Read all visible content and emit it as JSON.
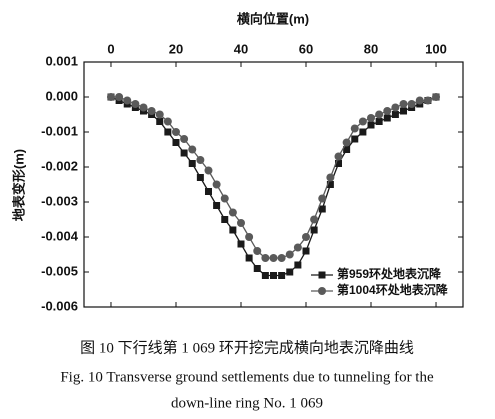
{
  "chart_data": {
    "type": "line",
    "x_label": "横向位置(m)",
    "y_label": "地表变形(m)",
    "x": [
      0,
      2.5,
      5,
      7.5,
      10,
      12.5,
      15,
      17.5,
      20,
      22.5,
      25,
      27.5,
      30,
      32.5,
      35,
      37.5,
      40,
      42.5,
      45,
      47.5,
      50,
      52.5,
      55,
      57.5,
      60,
      62.5,
      65,
      67.5,
      70,
      72.5,
      75,
      77.5,
      80,
      82.5,
      85,
      87.5,
      90,
      92.5,
      95,
      97.5,
      100
    ],
    "series": [
      {
        "name": "第959环处地表沉降",
        "color": "#1a1a1a",
        "marker": "square",
        "values": [
          0,
          -0.0001,
          -0.0002,
          -0.0003,
          -0.0004,
          -0.0005,
          -0.0007,
          -0.001,
          -0.0013,
          -0.0016,
          -0.0019,
          -0.0023,
          -0.0027,
          -0.0031,
          -0.0035,
          -0.0038,
          -0.0042,
          -0.0046,
          -0.0049,
          -0.0051,
          -0.0051,
          -0.0051,
          -0.005,
          -0.0048,
          -0.0044,
          -0.0038,
          -0.0032,
          -0.0025,
          -0.0019,
          -0.0015,
          -0.0012,
          -0.001,
          -0.0008,
          -0.0007,
          -0.0006,
          -0.0005,
          -0.0004,
          -0.0003,
          -0.0002,
          -0.0001,
          0
        ]
      },
      {
        "name": "第1004环处地表沉降",
        "color": "#5a5a5a",
        "marker": "circle",
        "values": [
          0,
          0,
          -0.0001,
          -0.0002,
          -0.0003,
          -0.0004,
          -0.0005,
          -0.0007,
          -0.001,
          -0.0012,
          -0.0015,
          -0.0018,
          -0.0021,
          -0.0025,
          -0.0029,
          -0.0033,
          -0.0036,
          -0.004,
          -0.0044,
          -0.0046,
          -0.0046,
          -0.0046,
          -0.0045,
          -0.0043,
          -0.004,
          -0.0035,
          -0.0029,
          -0.0023,
          -0.0017,
          -0.0013,
          -0.0009,
          -0.0007,
          -0.0006,
          -0.0005,
          -0.0004,
          -0.0003,
          -0.0002,
          -0.0002,
          -0.0001,
          -0.0001,
          0
        ]
      }
    ],
    "xlim": [
      -8.3,
      108.3
    ],
    "xticks": [
      0,
      20,
      40,
      60,
      80,
      100
    ],
    "ylim": [
      -0.006,
      0.001
    ],
    "yticks": [
      0.001,
      {
        "value": 0,
        "label": "0.000"
      },
      -0.001,
      -0.002,
      -0.003,
      -0.004,
      -0.005,
      -0.006
    ],
    "legend": "lower right"
  },
  "caption": {
    "cn": "图 10    下行线第 1 069 环开挖完成横向地表沉降曲线",
    "en1": "Fig. 10   Transverse ground settlements due to tunneling for the",
    "en2": "down-line ring No. 1 069"
  }
}
